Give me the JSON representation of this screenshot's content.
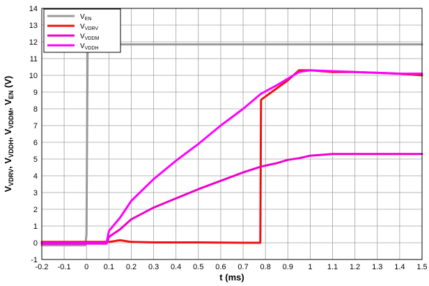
{
  "chart_data": {
    "type": "line",
    "xlabel": "t (ms)",
    "ylabel": {
      "prefix": "V",
      "parts": [
        {
          "sub": "VDRV",
          "sep": ", V"
        },
        {
          "sub": "VDDH",
          "sep": ", V"
        },
        {
          "sub": "VDDM",
          "sep": ", V"
        },
        {
          "sub": "EN",
          "sep": " (V)"
        }
      ]
    },
    "xlim": [
      -0.2,
      1.5
    ],
    "ylim": [
      -1,
      14
    ],
    "xticks": [
      "-0.2",
      "-0.1",
      "0",
      "0.1",
      "0.2",
      "0.3",
      "0.4",
      "0.5",
      "0.6",
      "0.7",
      "0.8",
      "0.9",
      "1",
      "1.1",
      "1.2",
      "1.3",
      "1.4",
      "1.5"
    ],
    "yticks": [
      "-1",
      "0",
      "1",
      "2",
      "3",
      "4",
      "5",
      "6",
      "7",
      "8",
      "9",
      "10",
      "11",
      "12",
      "13",
      "14"
    ],
    "grid": true,
    "legend_position": "top-left",
    "series": [
      {
        "name": "V",
        "sub": "EN",
        "color": "#999999",
        "x": [
          -0.2,
          -0.005,
          0.0,
          0.005,
          0.01,
          1.5
        ],
        "y": [
          -0.15,
          -0.15,
          0.5,
          11.8,
          11.85,
          11.85
        ]
      },
      {
        "name": "V",
        "sub": "VDRV",
        "color": "#ee1111",
        "x": [
          -0.2,
          0.1,
          0.15,
          0.2,
          0.3,
          0.5,
          0.7,
          0.777,
          0.78,
          0.781,
          0.9,
          0.95,
          1.0,
          1.1,
          1.2,
          1.3,
          1.4,
          1.5
        ],
        "y": [
          0.05,
          0.05,
          0.15,
          0.05,
          0.02,
          0.02,
          0.0,
          0.0,
          8.5,
          8.55,
          9.7,
          10.3,
          10.3,
          10.2,
          10.2,
          10.15,
          10.1,
          10.0
        ]
      },
      {
        "name": "V",
        "sub": "VDDM",
        "color": "#ee00cc",
        "x": [
          -0.2,
          0.09,
          0.1,
          0.15,
          0.2,
          0.3,
          0.4,
          0.5,
          0.6,
          0.7,
          0.78,
          0.85,
          0.9,
          0.95,
          1.0,
          1.1,
          1.2,
          1.3,
          1.4,
          1.5
        ],
        "y": [
          -0.05,
          -0.05,
          0.35,
          0.8,
          1.4,
          2.1,
          2.65,
          3.2,
          3.7,
          4.2,
          4.55,
          4.75,
          4.95,
          5.05,
          5.2,
          5.3,
          5.3,
          5.3,
          5.3,
          5.3
        ]
      },
      {
        "name": "V",
        "sub": "VDDH",
        "color": "#ff00ff",
        "x": [
          -0.2,
          0.09,
          0.1,
          0.15,
          0.2,
          0.3,
          0.4,
          0.5,
          0.6,
          0.7,
          0.78,
          0.85,
          0.9,
          0.95,
          1.0,
          1.1,
          1.2,
          1.3,
          1.4,
          1.5
        ],
        "y": [
          0.0,
          0.0,
          0.7,
          1.5,
          2.5,
          3.8,
          4.9,
          5.9,
          7.0,
          8.0,
          8.9,
          9.4,
          9.8,
          10.2,
          10.3,
          10.25,
          10.2,
          10.15,
          10.1,
          10.1
        ]
      }
    ]
  }
}
